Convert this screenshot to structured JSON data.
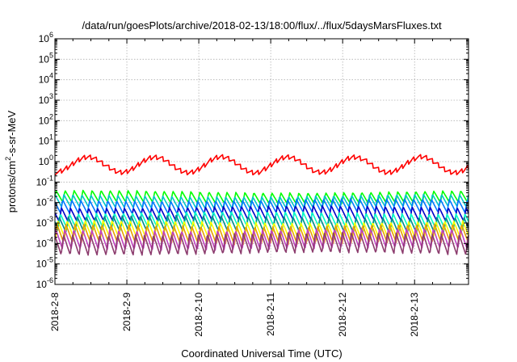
{
  "chart_data": {
    "type": "line",
    "title": "/data/run/goesPlots/archive/2018-02-13/18:00/flux/../flux/5daysMarsFluxes.txt",
    "xlabel": "Coordinated Universal Time (UTC)",
    "ylabel": {
      "pre": "protons/cm",
      "sup": "2",
      "post": "-s-sr-MeV"
    },
    "y_scale": "log",
    "ylim_exponents": [
      -6,
      6
    ],
    "y_ticks": [
      {
        "base": "10",
        "exp": "-6"
      },
      {
        "base": "10",
        "exp": "-5"
      },
      {
        "base": "10",
        "exp": "-4"
      },
      {
        "base": "10",
        "exp": "-3"
      },
      {
        "base": "10",
        "exp": "-2"
      },
      {
        "base": "10",
        "exp": "-1"
      },
      {
        "base": "10",
        "exp": "0"
      },
      {
        "base": "10",
        "exp": "1"
      },
      {
        "base": "10",
        "exp": "2"
      },
      {
        "base": "10",
        "exp": "3"
      },
      {
        "base": "10",
        "exp": "4"
      },
      {
        "base": "10",
        "exp": "5"
      },
      {
        "base": "10",
        "exp": "6"
      }
    ],
    "x_ticks": [
      "2018-2-8",
      "2018-2-9",
      "2018-2-10",
      "2018-2-11",
      "2018-2-12",
      "2018-2-13"
    ],
    "xlim_days": [
      0,
      5.75
    ],
    "grid": true,
    "series": [
      {
        "color": "#ff0000",
        "kind": "slow",
        "level": 0.7,
        "amp": 0.38,
        "teeth": 0.12
      },
      {
        "color": "#00ff00",
        "kind": "saw",
        "level": 0.018,
        "amp": 0.28
      },
      {
        "color": "#00c8c8",
        "kind": "saw",
        "level": 0.011,
        "amp": 0.3
      },
      {
        "color": "#0078ff",
        "kind": "saw",
        "level": 0.0065,
        "amp": 0.32
      },
      {
        "color": "#0000c8",
        "kind": "saw",
        "level": 0.0028,
        "amp": 0.34
      },
      {
        "color": "#00ffc8",
        "kind": "saw",
        "level": 0.0014,
        "amp": 0.36
      },
      {
        "color": "#008c8c",
        "kind": "saw",
        "level": 0.00085,
        "amp": 0.38
      },
      {
        "color": "#ffff00",
        "kind": "saw",
        "level": 0.00045,
        "amp": 0.42
      },
      {
        "color": "#e6a000",
        "kind": "saw",
        "level": 0.00028,
        "amp": 0.45
      },
      {
        "color": "#c040c0",
        "kind": "saw",
        "level": 0.00016,
        "amp": 0.48
      },
      {
        "color": "#8c3c6e",
        "kind": "saw",
        "level": 9.5e-05,
        "amp": 0.5
      }
    ]
  }
}
